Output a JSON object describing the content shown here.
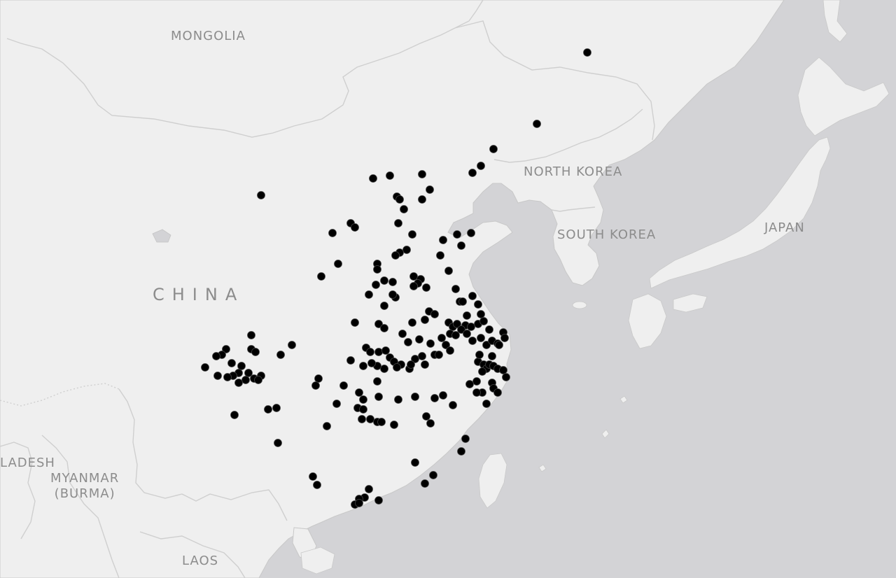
{
  "map": {
    "labels": {
      "mongolia": "MONGOLIA",
      "china": "CHINA",
      "north_korea": "NORTH KOREA",
      "south_korea": "SOUTH KOREA",
      "japan": "JAPAN",
      "bangladesh_partial": "LADESH",
      "myanmar_line1": "MYANMAR",
      "myanmar_line2": "(BURMA)",
      "laos": "LAOS"
    },
    "colors": {
      "water": "#d3d3d6",
      "land": "#efefef",
      "border": "#cfcfcf",
      "label": "#8c8c8c",
      "point": "#000000"
    },
    "point_symbol": "filled-black-circle"
  }
}
